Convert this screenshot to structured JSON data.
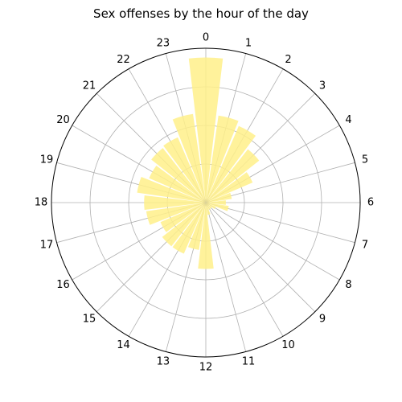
{
  "chart_data": {
    "type": "bar",
    "polar": true,
    "title": "Sex offenses by the hour of the day",
    "categories": [
      "0",
      "1",
      "2",
      "3",
      "4",
      "5",
      "6",
      "7",
      "8",
      "9",
      "10",
      "11",
      "12",
      "13",
      "14",
      "15",
      "16",
      "17",
      "18",
      "19",
      "20",
      "21",
      "22",
      "23"
    ],
    "values": [
      0.94,
      0.57,
      0.54,
      0.44,
      0.33,
      0.17,
      0.13,
      0.15,
      0.07,
      0.05,
      0.05,
      0.08,
      0.43,
      0.31,
      0.36,
      0.36,
      0.32,
      0.39,
      0.4,
      0.45,
      0.4,
      0.45,
      0.46,
      0.58
    ],
    "theta_zero": "top",
    "direction": "clockwise",
    "rlim": [
      0,
      1
    ],
    "radial_gridlines": [
      0.25,
      0.5,
      0.75
    ],
    "angular_gridlines": 24,
    "bar_color": "#fff08a",
    "grid": true
  }
}
